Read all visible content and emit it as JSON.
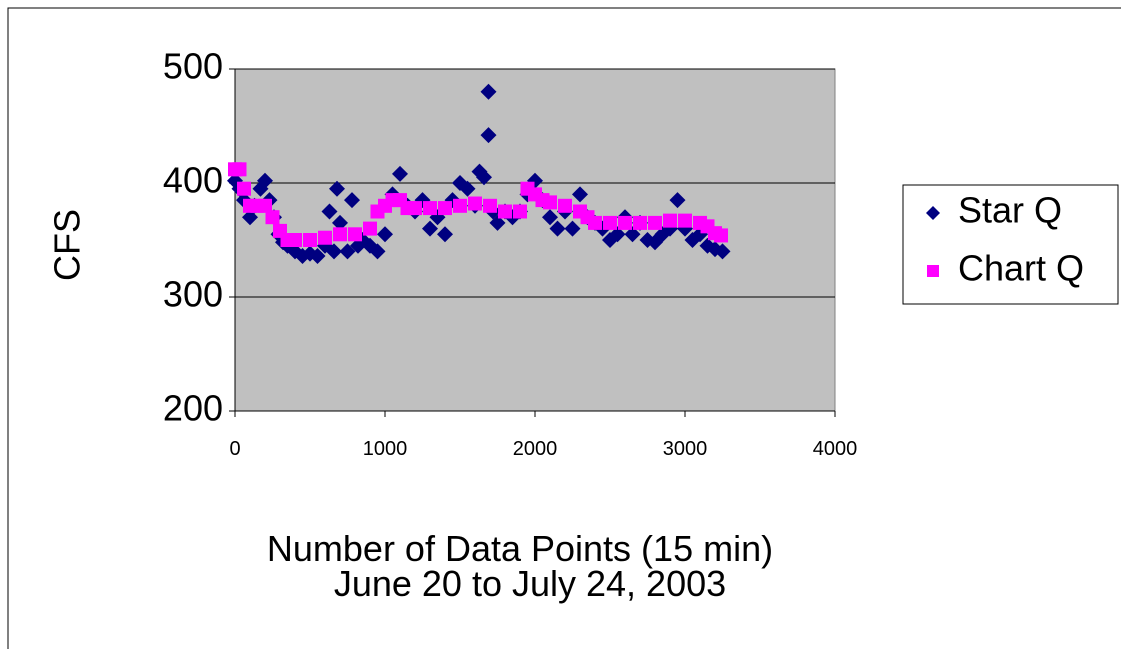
{
  "chart_data": {
    "type": "scatter",
    "ylabel": "CFS",
    "xlabel": [
      "Number of Data Points (15 min)",
      "June 20 to July 24, 2003"
    ],
    "xlim": [
      0,
      4000
    ],
    "xticks": [
      0,
      1000,
      2000,
      3000,
      4000
    ],
    "ylim": [
      200,
      500
    ],
    "yticks": [
      200,
      300,
      400,
      500
    ],
    "grid": true,
    "background": "#c0c0c0",
    "legend": "right",
    "series": [
      {
        "name": "Star Q",
        "color": "#000080",
        "marker": "diamond",
        "x": [
          0,
          30,
          60,
          100,
          130,
          170,
          200,
          230,
          260,
          290,
          320,
          350,
          400,
          450,
          500,
          550,
          600,
          630,
          660,
          680,
          700,
          750,
          780,
          820,
          850,
          900,
          950,
          1000,
          1050,
          1100,
          1150,
          1200,
          1250,
          1300,
          1350,
          1400,
          1450,
          1500,
          1550,
          1600,
          1630,
          1660,
          1690,
          1690,
          1720,
          1750,
          1800,
          1850,
          1900,
          1950,
          2000,
          2050,
          2100,
          2150,
          2200,
          2250,
          2300,
          2350,
          2400,
          2450,
          2500,
          2550,
          2600,
          2650,
          2700,
          2750,
          2800,
          2850,
          2900,
          2950,
          3000,
          3050,
          3100,
          3150,
          3200,
          3250
        ],
        "values": [
          402,
          395,
          385,
          370,
          380,
          395,
          402,
          385,
          370,
          355,
          348,
          345,
          340,
          336,
          338,
          336,
          345,
          375,
          340,
          395,
          365,
          340,
          385,
          345,
          350,
          345,
          340,
          355,
          390,
          408,
          380,
          375,
          385,
          360,
          370,
          355,
          385,
          400,
          395,
          380,
          410,
          405,
          480,
          442,
          375,
          365,
          375,
          370,
          375,
          390,
          402,
          385,
          370,
          360,
          375,
          360,
          390,
          370,
          365,
          360,
          350,
          355,
          370,
          355,
          365,
          350,
          348,
          355,
          360,
          385,
          360,
          350,
          355,
          345,
          342,
          340
        ]
      },
      {
        "name": "Chart Q",
        "color": "#ff00ff",
        "marker": "square",
        "x": [
          0,
          30,
          60,
          100,
          150,
          200,
          250,
          300,
          350,
          400,
          500,
          600,
          700,
          800,
          900,
          950,
          1000,
          1050,
          1100,
          1150,
          1200,
          1300,
          1400,
          1500,
          1600,
          1700,
          1800,
          1900,
          1950,
          2000,
          2050,
          2100,
          2200,
          2300,
          2350,
          2400,
          2500,
          2600,
          2700,
          2800,
          2900,
          3000,
          3100,
          3150,
          3200,
          3240
        ],
        "values": [
          412,
          412,
          395,
          380,
          380,
          380,
          370,
          358,
          350,
          350,
          350,
          352,
          355,
          355,
          360,
          375,
          380,
          385,
          385,
          378,
          378,
          378,
          378,
          380,
          382,
          380,
          375,
          375,
          395,
          390,
          385,
          383,
          380,
          375,
          370,
          365,
          365,
          365,
          365,
          365,
          367,
          367,
          365,
          362,
          356,
          354
        ]
      }
    ]
  }
}
